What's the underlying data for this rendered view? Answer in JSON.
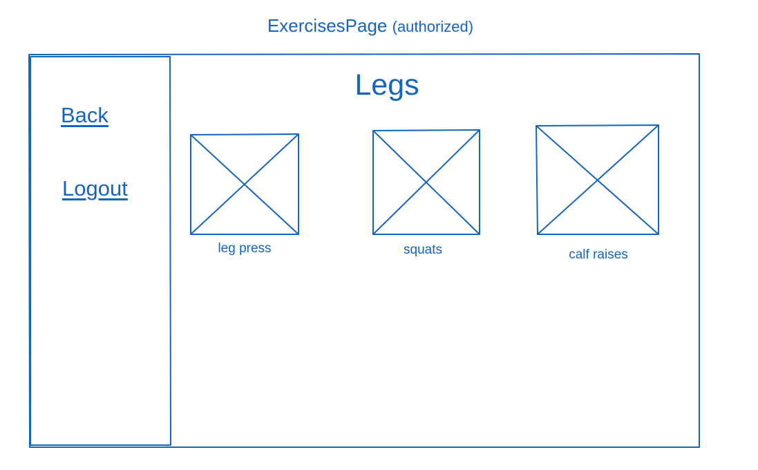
{
  "header": {
    "title": "ExercisesPage",
    "note": "(authorized)"
  },
  "sidebar": {
    "links": [
      {
        "label": "Back"
      },
      {
        "label": "Logout"
      }
    ]
  },
  "main": {
    "section_title": "Legs",
    "exercises": [
      {
        "label": "leg press"
      },
      {
        "label": "squats"
      },
      {
        "label": "calf raises"
      }
    ]
  },
  "colors": {
    "stroke": "#1565c0",
    "background": "#ffffff"
  }
}
